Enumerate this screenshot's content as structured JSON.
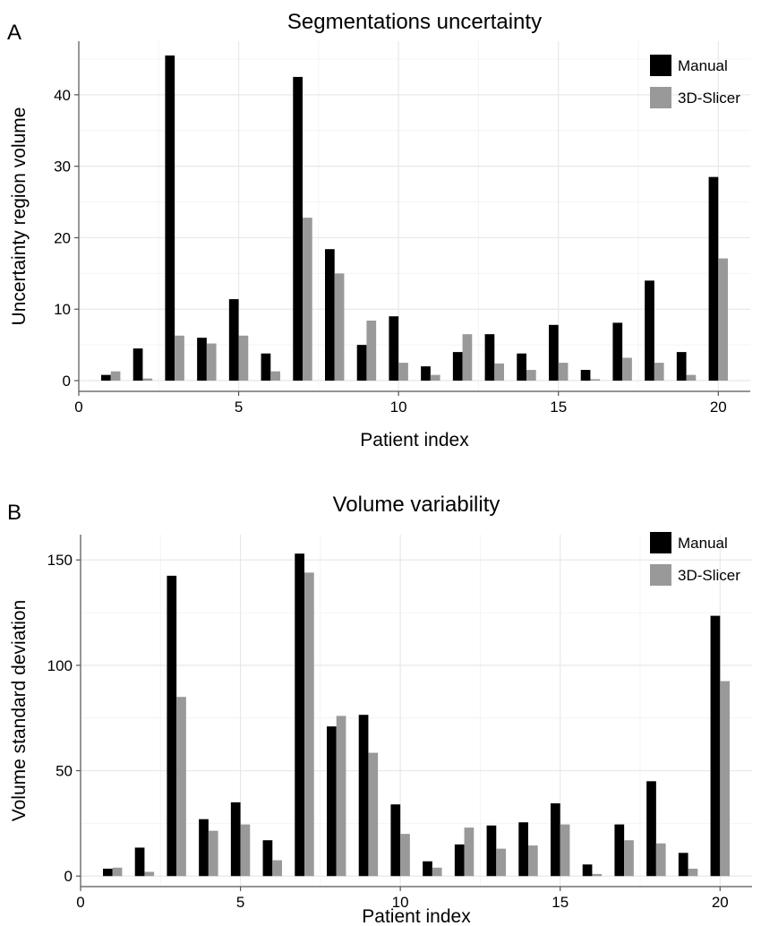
{
  "colors": {
    "manual": "#000000",
    "slicer": "#999999",
    "grid_major": "#e8e8e8",
    "grid_minor": "#f4f4f4",
    "axis": "#555555"
  },
  "panels": [
    {
      "letter": "A"
    },
    {
      "letter": "B"
    }
  ],
  "chart_data": [
    {
      "type": "bar",
      "title": "Segmentations uncertainty",
      "xlabel": "Patient index",
      "ylabel": "Uncertainty region volume",
      "x": [
        1,
        2,
        3,
        4,
        5,
        6,
        7,
        8,
        9,
        10,
        11,
        12,
        13,
        14,
        15,
        16,
        17,
        18,
        19,
        20
      ],
      "xlim": [
        0,
        21
      ],
      "ylim": [
        -1.5,
        47.5
      ],
      "xticks": [
        0,
        5,
        10,
        15,
        20
      ],
      "yticks": [
        0,
        10,
        20,
        30,
        40
      ],
      "grid": true,
      "legend_position": "top-right",
      "series": [
        {
          "name": "Manual",
          "color": "#000000",
          "values": [
            0.8,
            4.5,
            45.5,
            6.0,
            11.4,
            3.8,
            42.5,
            18.4,
            5.0,
            9.0,
            2.0,
            4.0,
            6.5,
            3.8,
            7.8,
            1.5,
            8.1,
            14.0,
            4.0,
            28.5
          ]
        },
        {
          "name": "3D-Slicer",
          "color": "#999999",
          "values": [
            1.3,
            0.3,
            6.3,
            5.2,
            6.3,
            1.3,
            22.8,
            15.0,
            8.4,
            2.5,
            0.8,
            6.5,
            2.4,
            1.5,
            2.5,
            0.2,
            3.2,
            2.5,
            0.8,
            17.1
          ]
        }
      ]
    },
    {
      "type": "bar",
      "title": "Volume variability",
      "xlabel": "Patient index",
      "ylabel": "Volume standard deviation",
      "x": [
        1,
        2,
        3,
        4,
        5,
        6,
        7,
        8,
        9,
        10,
        11,
        12,
        13,
        14,
        15,
        16,
        17,
        18,
        19,
        20
      ],
      "xlim": [
        0,
        21
      ],
      "ylim": [
        -5,
        162
      ],
      "xticks": [
        0,
        5,
        10,
        15,
        20
      ],
      "yticks": [
        0,
        50,
        100,
        150
      ],
      "grid": true,
      "legend_position": "top-right",
      "series": [
        {
          "name": "Manual",
          "color": "#000000",
          "values": [
            3.5,
            13.5,
            142.5,
            27.0,
            35.0,
            17.0,
            153.0,
            71.0,
            76.5,
            34.0,
            7.0,
            15.0,
            24.0,
            25.5,
            34.5,
            5.5,
            24.5,
            45.0,
            11.0,
            123.5
          ]
        },
        {
          "name": "3D-Slicer",
          "color": "#999999",
          "values": [
            4.0,
            2.0,
            85.0,
            21.5,
            24.5,
            7.5,
            144.0,
            76.0,
            58.5,
            20.0,
            4.0,
            23.0,
            13.0,
            14.5,
            24.5,
            1.0,
            17.0,
            15.5,
            3.5,
            92.5
          ]
        }
      ]
    }
  ]
}
